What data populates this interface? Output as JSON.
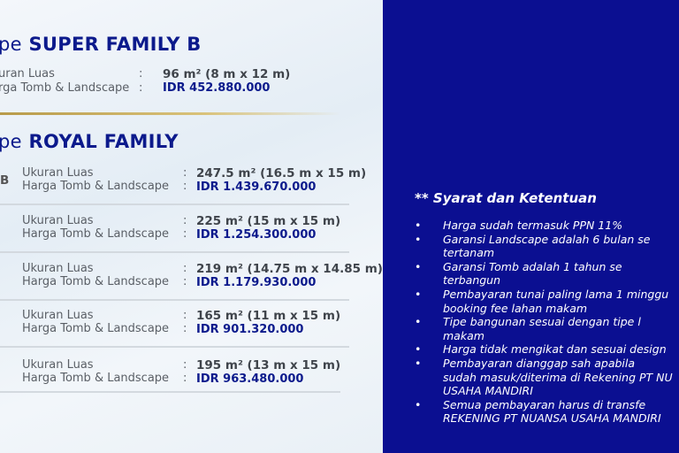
{
  "super_family_b": {
    "prefix": "pe",
    "name": "SUPER FAMILY B",
    "size_label": "uran Luas",
    "price_label": "rga Tomb & Landscape",
    "size": "96 m² (8 m x 12 m)",
    "price": "IDR 452.880.000"
  },
  "royal_family": {
    "prefix": "pe",
    "name": "ROYAL FAMILY",
    "rows": [
      {
        "tag": "B",
        "size_label": "Ukuran Luas",
        "price_label": "Harga Tomb & Landscape",
        "size": "247.5 m² (16.5 m x 15 m)",
        "price": "IDR 1.439.670.000"
      },
      {
        "tag": "",
        "size_label": "Ukuran Luas",
        "price_label": "Harga Tomb & Landscape",
        "size": "225 m² (15 m x 15 m)",
        "price": "IDR 1.254.300.000"
      },
      {
        "tag": "",
        "size_label": "Ukuran Luas",
        "price_label": "Harga Tomb & Landscape",
        "size": "219 m² (14.75 m x 14.85 m)",
        "price": "IDR 1.179.930.000"
      },
      {
        "tag": "",
        "size_label": "Ukuran Luas",
        "price_label": "Harga Tomb & Landscape",
        "size": "165 m² (11 m x 15 m)",
        "price": "IDR 901.320.000"
      },
      {
        "tag": "",
        "size_label": "Ukuran Luas",
        "price_label": "Harga Tomb & Landscape",
        "size": "195 m² (13 m x 15 m)",
        "price": "IDR 963.480.000"
      }
    ]
  },
  "colon": ":",
  "terms": {
    "title": "** Syarat dan Ketentuan",
    "bullet": "•",
    "items": [
      {
        "line1": "Harga sudah termasuk PPN 11%"
      },
      {
        "line1": "Garansi  Landscape  adalah  6  bulan  se",
        "line2": "tertanam"
      },
      {
        "line1": "Garansi   Tomb   adalah   1   tahun   se",
        "line2": "terbangun"
      },
      {
        "line1": "Pembayaran tunai paling lama 1 minggu",
        "line2": "booking fee lahan makam"
      },
      {
        "line1": "Tipe  bangunan  sesuai  dengan  tipe  l",
        "line2": "makam"
      },
      {
        "line1": "Harga tidak mengikat dan sesuai design"
      },
      {
        "line1": "Pembayaran  dianggap  sah  apabila",
        "line2": "sudah masuk/diterima di Rekening PT NU",
        "line3": "USAHA MANDIRI"
      },
      {
        "line1": "Semua  pembayaran  harus  di  transfe",
        "line2": "REKENING PT NUANSA USAHA MANDIRI"
      }
    ]
  },
  "colors": {
    "brand_blue": "#0b0f91",
    "gold": "#c8ad5e"
  }
}
